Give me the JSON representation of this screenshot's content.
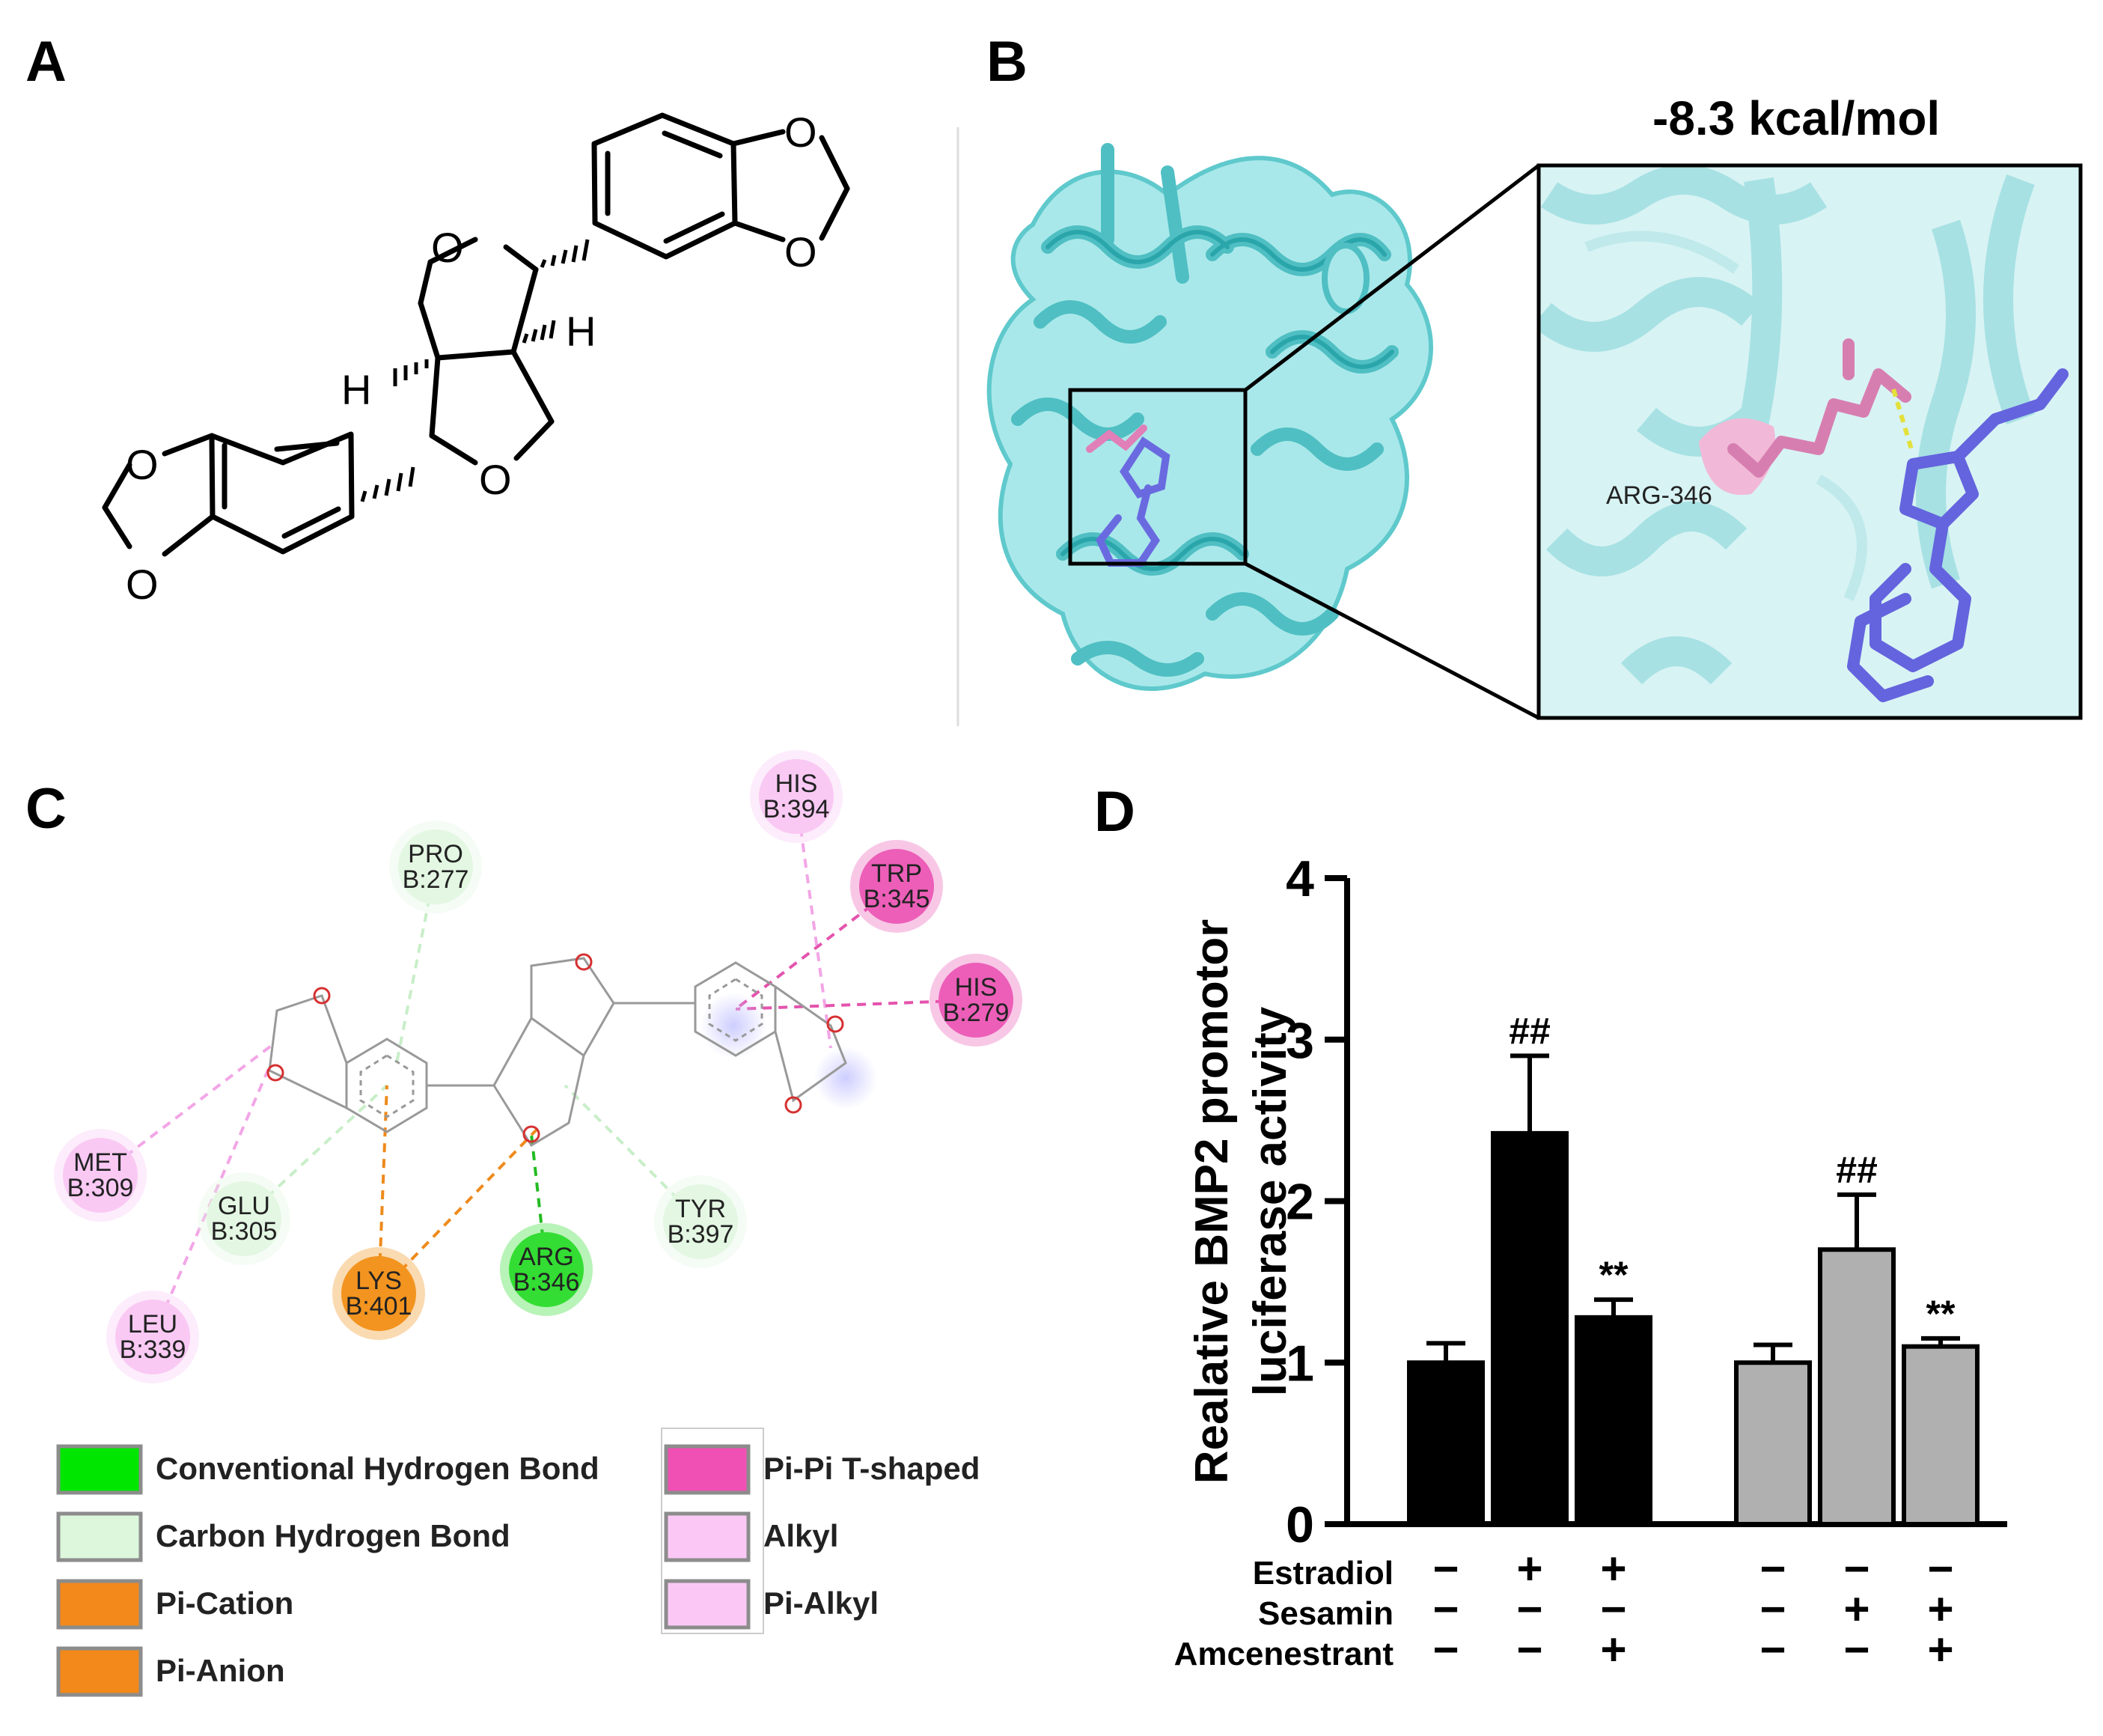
{
  "panels": {
    "a": {
      "label": "A"
    },
    "b": {
      "label": "B",
      "energy": "-8.3 kcal/mol",
      "residue": "ARG-346"
    },
    "c": {
      "label": "C",
      "residues": [
        {
          "id": "his394",
          "name": "HIS",
          "chain": "B:394",
          "type": "alkyl"
        },
        {
          "id": "pro277",
          "name": "PRO",
          "chain": "B:277",
          "type": "carbon_h"
        },
        {
          "id": "trp345",
          "name": "TRP",
          "chain": "B:345",
          "type": "pipi"
        },
        {
          "id": "his279",
          "name": "HIS",
          "chain": "B:279",
          "type": "pipi"
        },
        {
          "id": "met309",
          "name": "MET",
          "chain": "B:309",
          "type": "alkyl"
        },
        {
          "id": "glu305",
          "name": "GLU",
          "chain": "B:305",
          "type": "carbon_h"
        },
        {
          "id": "tyr397",
          "name": "TYR",
          "chain": "B:397",
          "type": "carbon_h"
        },
        {
          "id": "lys401",
          "name": "LYS",
          "chain": "B:401",
          "type": "cation"
        },
        {
          "id": "arg346",
          "name": "ARG",
          "chain": "B:346",
          "type": "hbond"
        },
        {
          "id": "leu339",
          "name": "LEU",
          "chain": "B:339",
          "type": "alkyl"
        }
      ],
      "legend": [
        {
          "label": "Conventional Hydrogen Bond",
          "color": "#00e600"
        },
        {
          "label": "Carbon Hydrogen Bond",
          "color": "#dcf7dc"
        },
        {
          "label": "Pi-Cation",
          "color": "#f2891a"
        },
        {
          "label": "Pi-Anion",
          "color": "#f2891a"
        },
        {
          "label": "Pi-Pi T-shaped",
          "color": "#f050b4"
        },
        {
          "label": "Alkyl",
          "color": "#fbc8f5"
        },
        {
          "label": "Pi-Alkyl",
          "color": "#fbc8f5"
        }
      ]
    },
    "d": {
      "label": "D"
    }
  },
  "chart_data": {
    "type": "bar",
    "ylabel": "Realative BMP2 promotor luciferase activity",
    "ylabel_lines": [
      "Realative BMP2 promotor",
      "luciferase activity"
    ],
    "ylim": [
      0,
      4
    ],
    "yticks": [
      "0",
      "1",
      "2",
      "3",
      "4"
    ],
    "bars": [
      {
        "value": 1.0,
        "error": 0.12,
        "color": "#000000",
        "mark": ""
      },
      {
        "value": 2.42,
        "error": 0.48,
        "color": "#000000",
        "mark": "##"
      },
      {
        "value": 1.28,
        "error": 0.11,
        "color": "#000000",
        "mark": "**"
      },
      {
        "value": 1.0,
        "error": 0.11,
        "color": "#b0b0b0",
        "mark": ""
      },
      {
        "value": 1.7,
        "error": 0.34,
        "color": "#b0b0b0",
        "mark": "##"
      },
      {
        "value": 1.1,
        "error": 0.05,
        "color": "#b0b0b0",
        "mark": "**"
      }
    ],
    "conditions": [
      {
        "name": "Estradiol",
        "values": [
          "−",
          "+",
          "+",
          "−",
          "−",
          "−"
        ]
      },
      {
        "name": "Sesamin",
        "values": [
          "−",
          "−",
          "−",
          "−",
          "+",
          "+"
        ]
      },
      {
        "name": "Amcenestrant",
        "values": [
          "−",
          "−",
          "+",
          "−",
          "−",
          "+"
        ]
      }
    ]
  }
}
